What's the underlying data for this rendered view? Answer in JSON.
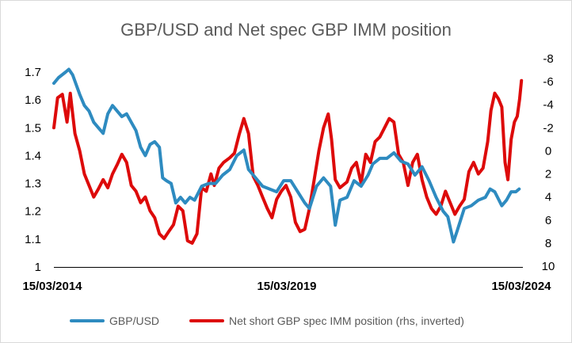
{
  "chart_data": {
    "type": "line",
    "title": "GBP/USD and Net spec GBP IMM position",
    "x_ticks": [
      "15/03/2014",
      "15/03/2019",
      "15/03/2024"
    ],
    "x_range": [
      2014.2,
      2024.2
    ],
    "y_left": {
      "range": [
        1.0,
        1.7
      ],
      "ticks": [
        "1.7",
        "1.6",
        "1.5",
        "1.4",
        "1.3",
        "1.2",
        "1.1",
        "1"
      ]
    },
    "y_right": {
      "range": [
        10,
        -8
      ],
      "inverted": true,
      "ticks": [
        "-8",
        "-6",
        "-4",
        "-2",
        "0",
        "2",
        "4",
        "6",
        "8",
        "10"
      ]
    },
    "grid": false,
    "legend_position": "bottom",
    "series": [
      {
        "name": "GBP/USD",
        "axis": "left",
        "color": "#2E8BC0",
        "points": [
          [
            2014.2,
            1.66
          ],
          [
            2014.3,
            1.68
          ],
          [
            2014.45,
            1.7
          ],
          [
            2014.52,
            1.71
          ],
          [
            2014.6,
            1.69
          ],
          [
            2014.75,
            1.62
          ],
          [
            2014.85,
            1.58
          ],
          [
            2014.95,
            1.56
          ],
          [
            2015.05,
            1.52
          ],
          [
            2015.15,
            1.5
          ],
          [
            2015.25,
            1.48
          ],
          [
            2015.35,
            1.55
          ],
          [
            2015.45,
            1.58
          ],
          [
            2015.55,
            1.56
          ],
          [
            2015.65,
            1.54
          ],
          [
            2015.75,
            1.55
          ],
          [
            2015.85,
            1.52
          ],
          [
            2015.95,
            1.49
          ],
          [
            2016.05,
            1.43
          ],
          [
            2016.15,
            1.4
          ],
          [
            2016.25,
            1.44
          ],
          [
            2016.35,
            1.45
          ],
          [
            2016.45,
            1.43
          ],
          [
            2016.52,
            1.32
          ],
          [
            2016.6,
            1.31
          ],
          [
            2016.7,
            1.3
          ],
          [
            2016.8,
            1.23
          ],
          [
            2016.9,
            1.25
          ],
          [
            2017.0,
            1.23
          ],
          [
            2017.1,
            1.25
          ],
          [
            2017.2,
            1.24
          ],
          [
            2017.35,
            1.29
          ],
          [
            2017.5,
            1.3
          ],
          [
            2017.65,
            1.3
          ],
          [
            2017.8,
            1.33
          ],
          [
            2017.95,
            1.35
          ],
          [
            2018.1,
            1.4
          ],
          [
            2018.25,
            1.42
          ],
          [
            2018.35,
            1.35
          ],
          [
            2018.5,
            1.32
          ],
          [
            2018.65,
            1.29
          ],
          [
            2018.8,
            1.28
          ],
          [
            2018.95,
            1.27
          ],
          [
            2019.1,
            1.31
          ],
          [
            2019.25,
            1.31
          ],
          [
            2019.4,
            1.27
          ],
          [
            2019.55,
            1.23
          ],
          [
            2019.65,
            1.21
          ],
          [
            2019.8,
            1.29
          ],
          [
            2019.95,
            1.32
          ],
          [
            2020.1,
            1.29
          ],
          [
            2020.2,
            1.15
          ],
          [
            2020.3,
            1.24
          ],
          [
            2020.45,
            1.25
          ],
          [
            2020.6,
            1.31
          ],
          [
            2020.75,
            1.29
          ],
          [
            2020.9,
            1.33
          ],
          [
            2021.0,
            1.37
          ],
          [
            2021.15,
            1.39
          ],
          [
            2021.3,
            1.39
          ],
          [
            2021.45,
            1.41
          ],
          [
            2021.6,
            1.38
          ],
          [
            2021.75,
            1.37
          ],
          [
            2021.9,
            1.33
          ],
          [
            2022.05,
            1.36
          ],
          [
            2022.2,
            1.31
          ],
          [
            2022.35,
            1.25
          ],
          [
            2022.5,
            1.2
          ],
          [
            2022.6,
            1.18
          ],
          [
            2022.72,
            1.09
          ],
          [
            2022.8,
            1.13
          ],
          [
            2022.95,
            1.21
          ],
          [
            2023.1,
            1.22
          ],
          [
            2023.25,
            1.24
          ],
          [
            2023.4,
            1.25
          ],
          [
            2023.5,
            1.28
          ],
          [
            2023.6,
            1.27
          ],
          [
            2023.75,
            1.22
          ],
          [
            2023.85,
            1.24
          ],
          [
            2023.95,
            1.27
          ],
          [
            2024.05,
            1.27
          ],
          [
            2024.12,
            1.28
          ]
        ]
      },
      {
        "name": "Net short GBP spec IMM position (rhs, inverted)",
        "axis": "right",
        "color": "#DD0A0A",
        "points": [
          [
            2014.2,
            -2.0
          ],
          [
            2014.28,
            -4.6
          ],
          [
            2014.38,
            -4.9
          ],
          [
            2014.48,
            -2.5
          ],
          [
            2014.55,
            -5.0
          ],
          [
            2014.65,
            -1.5
          ],
          [
            2014.75,
            0.0
          ],
          [
            2014.85,
            2.0
          ],
          [
            2014.95,
            3.0
          ],
          [
            2015.05,
            4.0
          ],
          [
            2015.15,
            3.3
          ],
          [
            2015.25,
            2.5
          ],
          [
            2015.35,
            3.2
          ],
          [
            2015.45,
            2.0
          ],
          [
            2015.55,
            1.2
          ],
          [
            2015.65,
            0.3
          ],
          [
            2015.75,
            1.0
          ],
          [
            2015.85,
            3.0
          ],
          [
            2015.95,
            3.5
          ],
          [
            2016.05,
            4.5
          ],
          [
            2016.15,
            4.0
          ],
          [
            2016.25,
            5.2
          ],
          [
            2016.35,
            5.8
          ],
          [
            2016.45,
            7.2
          ],
          [
            2016.55,
            7.6
          ],
          [
            2016.65,
            7.0
          ],
          [
            2016.75,
            6.4
          ],
          [
            2016.85,
            4.8
          ],
          [
            2016.95,
            5.2
          ],
          [
            2017.05,
            7.8
          ],
          [
            2017.15,
            8.0
          ],
          [
            2017.25,
            7.2
          ],
          [
            2017.35,
            3.2
          ],
          [
            2017.45,
            3.5
          ],
          [
            2017.55,
            2.0
          ],
          [
            2017.62,
            3.0
          ],
          [
            2017.72,
            1.5
          ],
          [
            2017.82,
            1.0
          ],
          [
            2017.95,
            0.6
          ],
          [
            2018.05,
            0.2
          ],
          [
            2018.15,
            -1.4
          ],
          [
            2018.25,
            -2.8
          ],
          [
            2018.35,
            -1.5
          ],
          [
            2018.45,
            2.2
          ],
          [
            2018.55,
            3.0
          ],
          [
            2018.65,
            4.0
          ],
          [
            2018.75,
            5.0
          ],
          [
            2018.85,
            5.8
          ],
          [
            2018.95,
            4.2
          ],
          [
            2019.05,
            3.5
          ],
          [
            2019.15,
            3.0
          ],
          [
            2019.25,
            4.0
          ],
          [
            2019.35,
            6.2
          ],
          [
            2019.45,
            7.0
          ],
          [
            2019.55,
            6.8
          ],
          [
            2019.65,
            5.0
          ],
          [
            2019.75,
            2.5
          ],
          [
            2019.85,
            0.0
          ],
          [
            2019.95,
            -2.0
          ],
          [
            2020.05,
            -3.2
          ],
          [
            2020.12,
            -1.0
          ],
          [
            2020.2,
            2.5
          ],
          [
            2020.3,
            3.2
          ],
          [
            2020.45,
            2.7
          ],
          [
            2020.55,
            1.5
          ],
          [
            2020.65,
            1.0
          ],
          [
            2020.75,
            2.8
          ],
          [
            2020.85,
            0.3
          ],
          [
            2020.95,
            1.0
          ],
          [
            2021.05,
            -0.8
          ],
          [
            2021.15,
            -1.2
          ],
          [
            2021.25,
            -2.0
          ],
          [
            2021.35,
            -2.8
          ],
          [
            2021.45,
            -2.5
          ],
          [
            2021.55,
            0.3
          ],
          [
            2021.65,
            1.0
          ],
          [
            2021.75,
            3.0
          ],
          [
            2021.85,
            1.0
          ],
          [
            2021.95,
            0.3
          ],
          [
            2022.05,
            2.5
          ],
          [
            2022.15,
            4.0
          ],
          [
            2022.25,
            5.0
          ],
          [
            2022.35,
            5.5
          ],
          [
            2022.45,
            4.8
          ],
          [
            2022.55,
            3.5
          ],
          [
            2022.65,
            4.5
          ],
          [
            2022.75,
            5.5
          ],
          [
            2022.85,
            4.8
          ],
          [
            2022.95,
            4.2
          ],
          [
            2023.05,
            1.8
          ],
          [
            2023.15,
            1.0
          ],
          [
            2023.25,
            2.0
          ],
          [
            2023.35,
            1.5
          ],
          [
            2023.45,
            -0.8
          ],
          [
            2023.52,
            -3.5
          ],
          [
            2023.6,
            -5.0
          ],
          [
            2023.68,
            -4.5
          ],
          [
            2023.75,
            -3.8
          ],
          [
            2023.82,
            1.0
          ],
          [
            2023.88,
            2.5
          ],
          [
            2023.95,
            -1.0
          ],
          [
            2024.02,
            -2.5
          ],
          [
            2024.08,
            -3.0
          ],
          [
            2024.13,
            -4.5
          ],
          [
            2024.17,
            -6.1
          ]
        ]
      }
    ]
  }
}
